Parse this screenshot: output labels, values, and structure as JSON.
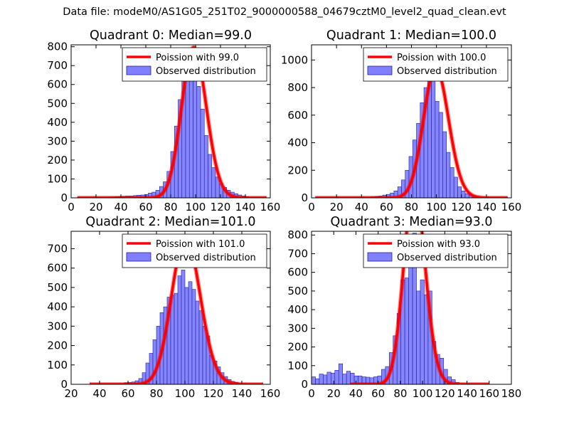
{
  "figure": {
    "suptitle": "Data file: modeM0/AS1G05_251T02_9000000588_04679cztM0_level2_quad_clean.evt"
  },
  "colors": {
    "poisson_line": "#ff0000",
    "histogram_fill": "#8080ff",
    "histogram_edge": "#2020a0"
  },
  "chart_data": [
    {
      "type": "bar",
      "title": "Quadrant 0: Median=99.0",
      "xlim": [
        0,
        160
      ],
      "ylim": [
        0,
        810
      ],
      "xticks": [
        0,
        20,
        40,
        60,
        80,
        100,
        120,
        140,
        160
      ],
      "yticks": [
        0,
        100,
        200,
        300,
        400,
        500,
        600,
        700,
        800
      ],
      "legend": [
        "Poission with 99.0",
        "Observed distribution"
      ],
      "legend_loc": "upper right",
      "median": 99.0,
      "bin_width": 3,
      "bin_start": 5,
      "values": [
        2,
        0,
        0,
        0,
        0,
        1,
        1,
        2,
        3,
        5,
        6,
        7,
        8,
        10,
        10,
        12,
        14,
        15,
        18,
        25,
        30,
        40,
        60,
        85,
        140,
        245,
        380,
        520,
        660,
        720,
        760,
        690,
        590,
        470,
        330,
        230,
        160,
        110,
        75,
        55,
        40,
        30,
        22,
        15,
        10,
        6,
        4,
        2,
        1,
        1
      ],
      "poisson_x": [
        5,
        157
      ]
    },
    {
      "type": "bar",
      "title": "Quadrant 1: Median=100.0",
      "xlim": [
        0,
        160
      ],
      "ylim": [
        0,
        1110
      ],
      "xticks": [
        0,
        20,
        40,
        60,
        80,
        100,
        120,
        140,
        160
      ],
      "yticks": [
        0,
        200,
        400,
        600,
        800,
        1000
      ],
      "legend": [
        "Poission with 100.0",
        "Observed distribution"
      ],
      "legend_loc": "upper right",
      "median": 100.0,
      "bin_width": 3,
      "bin_start": 3,
      "values": [
        1,
        0,
        0,
        0,
        0,
        0,
        0,
        0,
        1,
        1,
        2,
        3,
        3,
        4,
        6,
        8,
        10,
        14,
        20,
        25,
        35,
        50,
        80,
        130,
        200,
        300,
        420,
        540,
        690,
        800,
        1000,
        850,
        700,
        620,
        480,
        330,
        220,
        150,
        80,
        50,
        30,
        20,
        12,
        6,
        4,
        2,
        1,
        0,
        0,
        0,
        1
      ],
      "poisson_x": [
        3,
        157
      ]
    },
    {
      "type": "bar",
      "title": "Quadrant 2: Median=101.0",
      "xlim": [
        20,
        160
      ],
      "ylim": [
        0,
        790
      ],
      "xticks": [
        20,
        40,
        60,
        80,
        100,
        120,
        140,
        160
      ],
      "yticks": [
        0,
        100,
        200,
        300,
        400,
        500,
        600,
        700
      ],
      "legend": [
        "Poission with 101.0",
        "Observed distribution"
      ],
      "legend_loc": "upper right",
      "median": 101.0,
      "bin_width": 2.5,
      "bin_start": 35,
      "values": [
        1,
        0,
        0,
        0,
        1,
        1,
        2,
        3,
        5,
        8,
        10,
        12,
        18,
        30,
        60,
        110,
        160,
        230,
        300,
        370,
        400,
        450,
        460,
        470,
        560,
        590,
        500,
        530,
        490,
        430,
        380,
        300,
        250,
        150,
        120,
        90,
        60,
        40,
        25,
        15,
        10,
        5,
        2,
        1,
        1
      ],
      "poisson_x": [
        33,
        155
      ]
    },
    {
      "type": "bar",
      "title": "Quadrant 3: Median=93.0",
      "xlim": [
        0,
        180
      ],
      "ylim": [
        0,
        820
      ],
      "xticks": [
        0,
        20,
        40,
        60,
        80,
        100,
        120,
        140,
        160,
        180
      ],
      "yticks": [
        0,
        100,
        200,
        300,
        400,
        500,
        600,
        700,
        800
      ],
      "legend": [
        "Poission with 93.0",
        "Observed distribution"
      ],
      "legend_loc": "upper right",
      "median": 93.0,
      "bin_width": 3.5,
      "bin_start": 0,
      "values": [
        40,
        30,
        55,
        50,
        65,
        60,
        75,
        110,
        55,
        70,
        60,
        45,
        45,
        40,
        38,
        35,
        40,
        45,
        80,
        95,
        170,
        260,
        380,
        560,
        570,
        650,
        810,
        500,
        560,
        480,
        500,
        230,
        160,
        140,
        80,
        40,
        25,
        10,
        5,
        3,
        2,
        1,
        1,
        1
      ],
      "poisson_x": [
        35,
        160
      ]
    }
  ]
}
